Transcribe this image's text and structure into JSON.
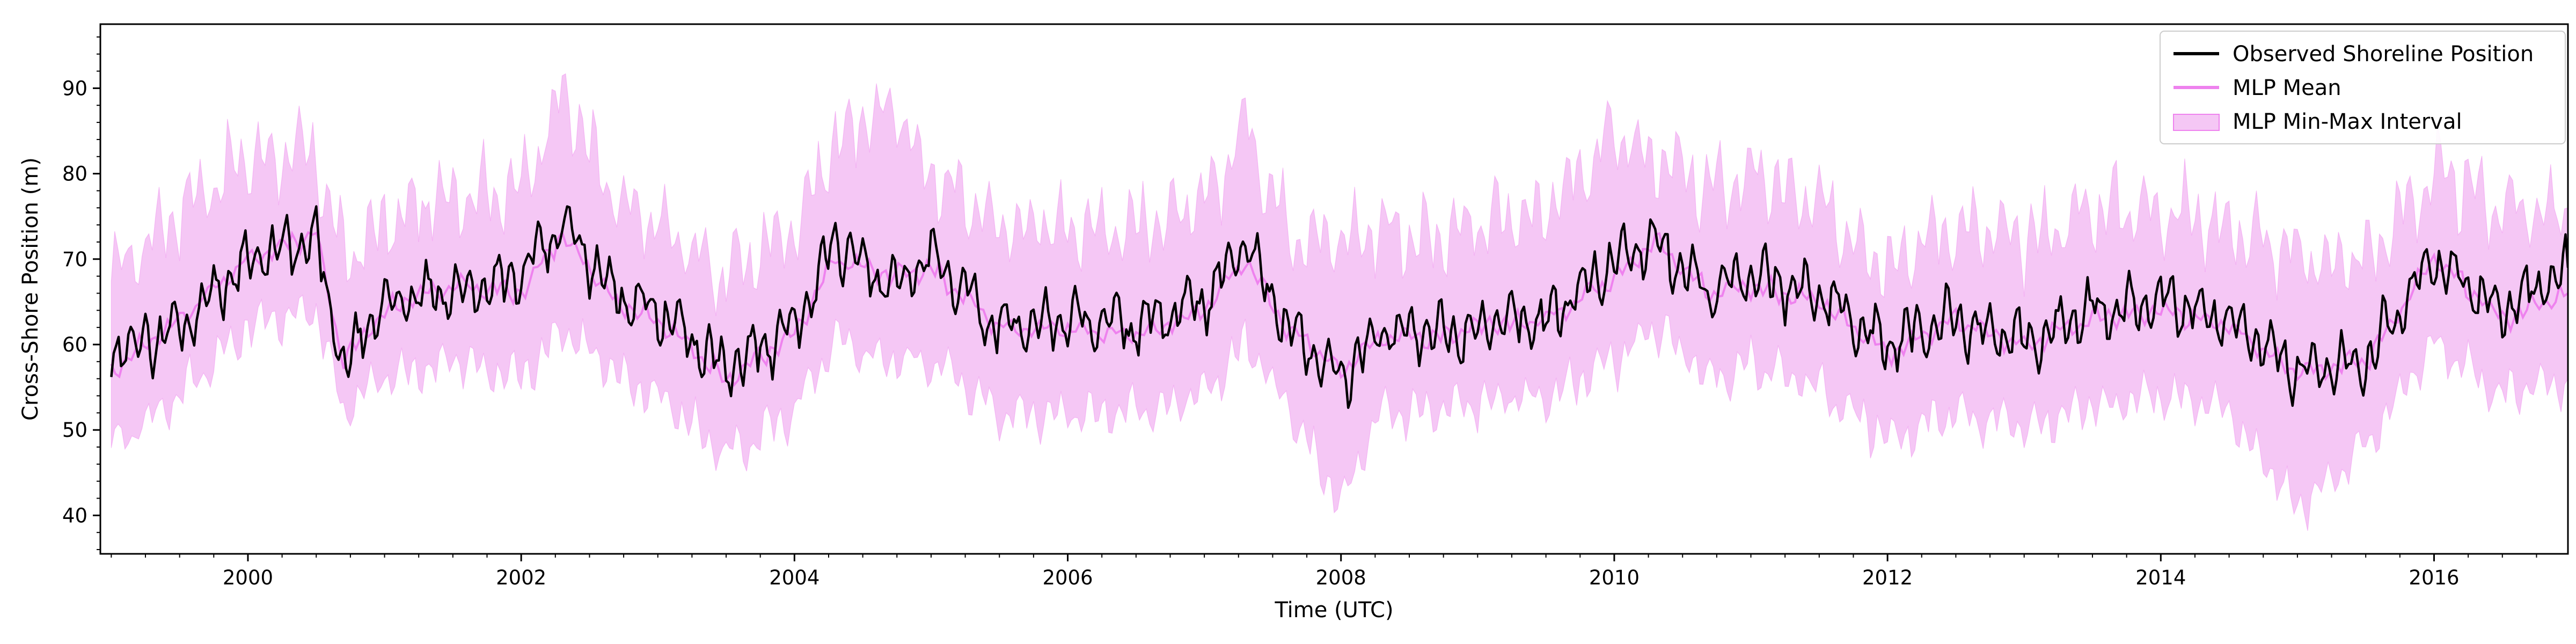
{
  "chart_data": {
    "type": "line",
    "xlabel": "Time (UTC)",
    "ylabel": "Cross-Shore Position (m)",
    "xlim": [
      1998.92,
      2016.98
    ],
    "ylim": [
      35.5,
      97.5
    ],
    "x_ticks": [
      "2000",
      "2002",
      "2004",
      "2006",
      "2008",
      "2010",
      "2012",
      "2014",
      "2016"
    ],
    "y_ticks": [
      "40",
      "50",
      "60",
      "70",
      "80",
      "90"
    ],
    "grid": false,
    "legend_position": "top-right",
    "colors": {
      "observed": "#000000",
      "mean": "#ee82ee",
      "interval_fill": "#f2b4f2",
      "interval_edge": "#ee82ee"
    },
    "series": [
      {
        "name": "Observed Shoreline Position",
        "style": "line",
        "x": [
          1999.0,
          1999.5,
          2000.0,
          2000.5,
          2000.7,
          2001.0,
          2001.5,
          2002.0,
          2002.3,
          2002.7,
          2003.0,
          2003.5,
          2004.0,
          2004.3,
          2004.7,
          2005.0,
          2005.5,
          2006.0,
          2006.5,
          2007.0,
          2007.3,
          2007.6,
          2008.0,
          2008.3,
          2008.7,
          2009.0,
          2009.5,
          2010.0,
          2010.3,
          2010.7,
          2011.0,
          2011.5,
          2012.0,
          2012.5,
          2013.0,
          2013.5,
          2014.0,
          2014.5,
          2015.0,
          2015.5,
          2016.0,
          2016.5,
          2016.98
        ],
        "y": [
          59,
          62,
          70,
          72,
          57,
          65,
          66,
          68,
          74,
          66,
          64,
          57,
          62,
          72,
          67,
          70,
          62,
          63,
          62,
          65,
          72,
          62,
          56,
          62,
          61,
          62,
          63,
          70,
          72,
          66,
          68,
          66,
          60,
          63,
          60,
          64,
          65,
          63,
          57,
          58,
          70,
          64,
          69
        ]
      },
      {
        "name": "MLP Mean",
        "style": "line",
        "x": [
          1999.0,
          1999.5,
          2000.0,
          2000.5,
          2000.7,
          2001.0,
          2001.5,
          2002.0,
          2002.3,
          2002.7,
          2003.0,
          2003.5,
          2004.0,
          2004.3,
          2004.7,
          2005.0,
          2005.5,
          2006.0,
          2006.5,
          2007.0,
          2007.3,
          2007.6,
          2008.0,
          2008.3,
          2008.7,
          2009.0,
          2009.5,
          2010.0,
          2010.3,
          2010.7,
          2011.0,
          2011.5,
          2012.0,
          2012.5,
          2013.0,
          2013.5,
          2014.0,
          2014.5,
          2015.0,
          2015.5,
          2016.0,
          2016.5,
          2016.98
        ],
        "y": [
          57,
          63,
          70,
          73,
          58,
          64,
          67,
          66,
          73,
          65,
          63,
          56,
          61,
          70,
          68,
          69,
          62,
          62,
          61,
          64,
          70,
          62,
          57,
          61,
          61,
          62,
          63,
          68,
          72,
          66,
          67,
          65,
          59,
          63,
          60,
          63,
          64,
          62,
          57,
          58,
          70,
          63,
          66
        ]
      },
      {
        "name": "MLP Min-Max Interval",
        "style": "band",
        "x": [
          1999.0,
          1999.5,
          2000.0,
          2000.5,
          2000.7,
          2001.0,
          2001.5,
          2002.0,
          2002.3,
          2002.7,
          2003.0,
          2003.5,
          2004.0,
          2004.3,
          2004.7,
          2005.0,
          2005.5,
          2006.0,
          2006.5,
          2007.0,
          2007.3,
          2007.6,
          2008.0,
          2008.3,
          2008.7,
          2009.0,
          2009.5,
          2010.0,
          2010.3,
          2010.7,
          2011.0,
          2011.5,
          2012.0,
          2012.5,
          2013.0,
          2013.5,
          2014.0,
          2014.5,
          2015.0,
          2015.5,
          2016.0,
          2016.5,
          2016.98
        ],
        "y_low": [
          48,
          54,
          62,
          64,
          52,
          56,
          58,
          56,
          62,
          56,
          54,
          47,
          52,
          60,
          58,
          58,
          52,
          52,
          52,
          54,
          60,
          53,
          41,
          52,
          52,
          53,
          54,
          58,
          62,
          56,
          58,
          55,
          49,
          52,
          50,
          53,
          54,
          52,
          41,
          48,
          60,
          54,
          56
        ],
        "y_high": [
          68,
          76,
          82,
          82,
          70,
          74,
          78,
          78,
          90,
          76,
          74,
          68,
          74,
          84,
          88,
          80,
          74,
          74,
          74,
          76,
          86,
          74,
          72,
          74,
          72,
          74,
          76,
          84,
          82,
          78,
          80,
          76,
          70,
          74,
          72,
          76,
          76,
          74,
          70,
          70,
          80,
          76,
          76
        ]
      }
    ]
  }
}
